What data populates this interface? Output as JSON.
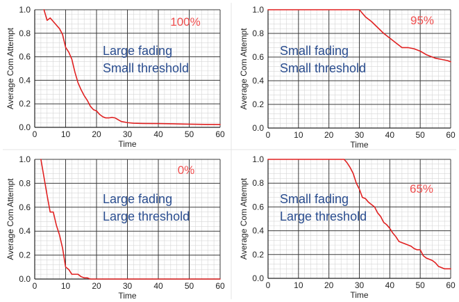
{
  "colors": {
    "line": "#e02020",
    "percent": "#f05050",
    "annotation": "#2a4d8f",
    "major_grid": "#3a3a3a",
    "minor_grid": "#d6d6d6",
    "axis_text": "#222222"
  },
  "chart_data": [
    {
      "type": "line",
      "xlabel": "Time",
      "ylabel": "Average Com Attempt",
      "xlim": [
        0,
        60
      ],
      "ylim": [
        0,
        1
      ],
      "x_ticks": [
        "0",
        "10",
        "20",
        "30",
        "40",
        "50",
        "60"
      ],
      "y_ticks": [
        "0.0",
        "0.2",
        "0.4",
        "0.6",
        "0.8",
        "1.0"
      ],
      "grid": true,
      "percent_label": "100%",
      "annotation": [
        "Large fading",
        "Small threshold"
      ],
      "series": [
        {
          "x": [
            3,
            4,
            5,
            6,
            7,
            8,
            9,
            10,
            11,
            12,
            13,
            14,
            15,
            16,
            17,
            18,
            19,
            20,
            21,
            22,
            23,
            24,
            25,
            26,
            27,
            28,
            29,
            30,
            32,
            35,
            40,
            45,
            50,
            55,
            60
          ],
          "y": [
            1.0,
            0.91,
            0.93,
            0.9,
            0.87,
            0.84,
            0.79,
            0.68,
            0.64,
            0.58,
            0.47,
            0.38,
            0.32,
            0.27,
            0.23,
            0.18,
            0.15,
            0.14,
            0.11,
            0.09,
            0.08,
            0.08,
            0.085,
            0.08,
            0.065,
            0.05,
            0.045,
            0.04,
            0.035,
            0.033,
            0.032,
            0.03,
            0.027,
            0.025,
            0.024
          ]
        }
      ]
    },
    {
      "type": "line",
      "xlabel": "Time",
      "ylabel": "Average Com Attempt",
      "xlim": [
        0,
        60
      ],
      "ylim": [
        0,
        1
      ],
      "x_ticks": [
        "0",
        "10",
        "20",
        "30",
        "40",
        "50",
        "60"
      ],
      "y_ticks": [
        "0.0",
        "0.2",
        "0.4",
        "0.6",
        "0.8",
        "1.0"
      ],
      "grid": true,
      "percent_label": "95%",
      "annotation": [
        "Small fading",
        "Small threshold"
      ],
      "series": [
        {
          "x": [
            0,
            30,
            31,
            32,
            34,
            36,
            38,
            40,
            42,
            44,
            46,
            48,
            50,
            52,
            54,
            55,
            57,
            59,
            60
          ],
          "y": [
            1.0,
            1.0,
            0.97,
            0.94,
            0.9,
            0.85,
            0.8,
            0.76,
            0.72,
            0.68,
            0.68,
            0.67,
            0.65,
            0.62,
            0.6,
            0.59,
            0.58,
            0.57,
            0.56
          ]
        }
      ]
    },
    {
      "type": "line",
      "xlabel": "Time",
      "ylabel": "Average Com Attempt",
      "xlim": [
        0,
        60
      ],
      "ylim": [
        0,
        1
      ],
      "x_ticks": [
        "0",
        "10",
        "20",
        "30",
        "40",
        "50",
        "60"
      ],
      "y_ticks": [
        "0.0",
        "0.2",
        "0.4",
        "0.6",
        "0.8",
        "1.0"
      ],
      "grid": true,
      "percent_label": "0%",
      "annotation": [
        "Large fading",
        "Large threshold"
      ],
      "series": [
        {
          "x": [
            2,
            3,
            4,
            5,
            6,
            7,
            8,
            9,
            10,
            11,
            12,
            13,
            14,
            15,
            16,
            17,
            18,
            60
          ],
          "y": [
            1.0,
            0.85,
            0.7,
            0.56,
            0.56,
            0.45,
            0.37,
            0.26,
            0.1,
            0.08,
            0.04,
            0.04,
            0.04,
            0.02,
            0.01,
            0.01,
            0.0,
            0.0
          ]
        }
      ]
    },
    {
      "type": "line",
      "xlabel": "Time",
      "ylabel": "Average Com Attempt",
      "xlim": [
        0,
        60
      ],
      "ylim": [
        0,
        1
      ],
      "x_ticks": [
        "0",
        "10",
        "20",
        "30",
        "40",
        "50",
        "60"
      ],
      "y_ticks": [
        "0.0",
        "0.2",
        "0.4",
        "0.6",
        "0.8",
        "1.0"
      ],
      "grid": true,
      "percent_label": "65%",
      "annotation": [
        "Small fading",
        "Large threshold"
      ],
      "series": [
        {
          "x": [
            0,
            25,
            26,
            27,
            28,
            29,
            30,
            31,
            32,
            33,
            34,
            35,
            36,
            37,
            38,
            39,
            40,
            41,
            42,
            43,
            44,
            45,
            46,
            47,
            48,
            49,
            50,
            51,
            52,
            53,
            54,
            55,
            56,
            58,
            60
          ],
          "y": [
            1.0,
            1.0,
            0.97,
            0.93,
            0.88,
            0.8,
            0.75,
            0.68,
            0.67,
            0.64,
            0.62,
            0.6,
            0.55,
            0.52,
            0.47,
            0.45,
            0.42,
            0.38,
            0.35,
            0.31,
            0.3,
            0.29,
            0.28,
            0.27,
            0.25,
            0.24,
            0.24,
            0.19,
            0.17,
            0.16,
            0.15,
            0.13,
            0.1,
            0.08,
            0.08
          ]
        }
      ]
    }
  ]
}
